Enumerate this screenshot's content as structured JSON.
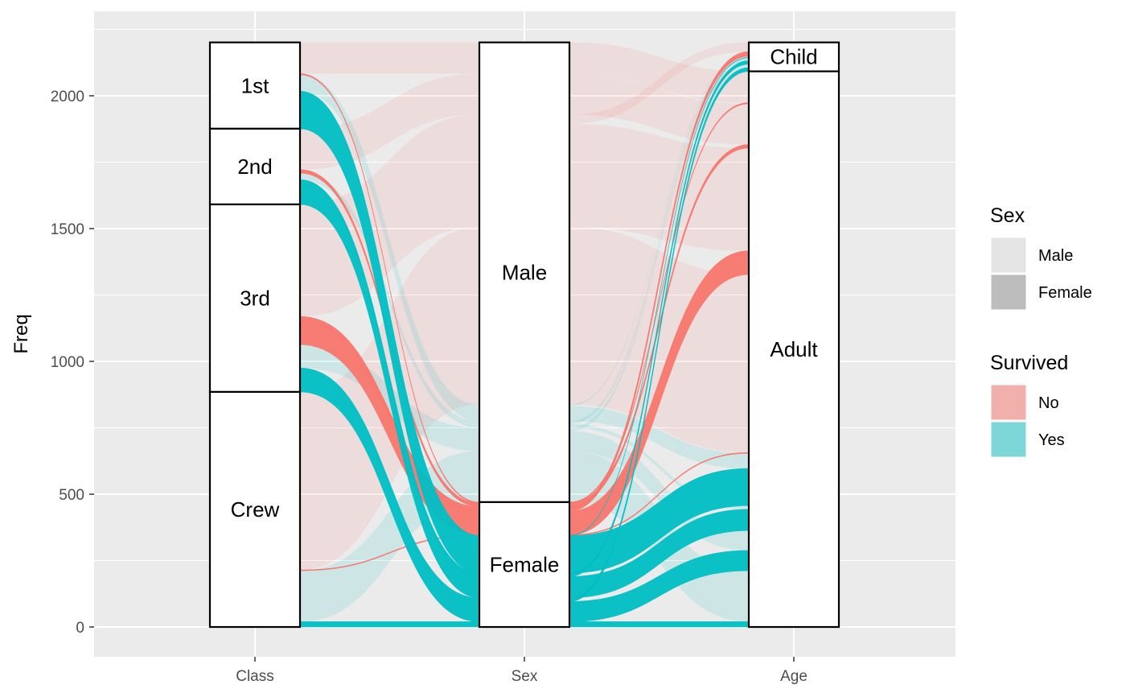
{
  "chart_data": {
    "type": "alluvial",
    "axes": [
      "Class",
      "Sex",
      "Age"
    ],
    "ylabel": "Freq",
    "ylim": [
      0,
      2201
    ],
    "y_ticks": [
      0,
      500,
      1000,
      1500,
      2000
    ],
    "strata": {
      "Class": [
        {
          "label": "1st",
          "count": 325
        },
        {
          "label": "2nd",
          "count": 285
        },
        {
          "label": "3rd",
          "count": 706
        },
        {
          "label": "Crew",
          "count": 885
        }
      ],
      "Sex": [
        {
          "label": "Male",
          "count": 1731
        },
        {
          "label": "Female",
          "count": 470
        }
      ],
      "Age": [
        {
          "label": "Child",
          "count": 109
        },
        {
          "label": "Adult",
          "count": 2092
        }
      ]
    },
    "flows": [
      {
        "class": "1st",
        "sex": "Male",
        "age": "Child",
        "survived": "No",
        "freq": 0
      },
      {
        "class": "2nd",
        "sex": "Male",
        "age": "Child",
        "survived": "No",
        "freq": 0
      },
      {
        "class": "3rd",
        "sex": "Male",
        "age": "Child",
        "survived": "No",
        "freq": 35
      },
      {
        "class": "Crew",
        "sex": "Male",
        "age": "Child",
        "survived": "No",
        "freq": 0
      },
      {
        "class": "1st",
        "sex": "Female",
        "age": "Child",
        "survived": "No",
        "freq": 0
      },
      {
        "class": "2nd",
        "sex": "Female",
        "age": "Child",
        "survived": "No",
        "freq": 0
      },
      {
        "class": "3rd",
        "sex": "Female",
        "age": "Child",
        "survived": "No",
        "freq": 17
      },
      {
        "class": "Crew",
        "sex": "Female",
        "age": "Child",
        "survived": "No",
        "freq": 0
      },
      {
        "class": "1st",
        "sex": "Male",
        "age": "Adult",
        "survived": "No",
        "freq": 118
      },
      {
        "class": "2nd",
        "sex": "Male",
        "age": "Adult",
        "survived": "No",
        "freq": 154
      },
      {
        "class": "3rd",
        "sex": "Male",
        "age": "Adult",
        "survived": "No",
        "freq": 387
      },
      {
        "class": "Crew",
        "sex": "Male",
        "age": "Adult",
        "survived": "No",
        "freq": 670
      },
      {
        "class": "1st",
        "sex": "Female",
        "age": "Adult",
        "survived": "No",
        "freq": 4
      },
      {
        "class": "2nd",
        "sex": "Female",
        "age": "Adult",
        "survived": "No",
        "freq": 13
      },
      {
        "class": "3rd",
        "sex": "Female",
        "age": "Adult",
        "survived": "No",
        "freq": 89
      },
      {
        "class": "Crew",
        "sex": "Female",
        "age": "Adult",
        "survived": "No",
        "freq": 3
      },
      {
        "class": "1st",
        "sex": "Male",
        "age": "Child",
        "survived": "Yes",
        "freq": 5
      },
      {
        "class": "2nd",
        "sex": "Male",
        "age": "Child",
        "survived": "Yes",
        "freq": 11
      },
      {
        "class": "3rd",
        "sex": "Male",
        "age": "Child",
        "survived": "Yes",
        "freq": 13
      },
      {
        "class": "Crew",
        "sex": "Male",
        "age": "Child",
        "survived": "Yes",
        "freq": 0
      },
      {
        "class": "1st",
        "sex": "Female",
        "age": "Child",
        "survived": "Yes",
        "freq": 1
      },
      {
        "class": "2nd",
        "sex": "Female",
        "age": "Child",
        "survived": "Yes",
        "freq": 13
      },
      {
        "class": "3rd",
        "sex": "Female",
        "age": "Child",
        "survived": "Yes",
        "freq": 14
      },
      {
        "class": "Crew",
        "sex": "Female",
        "age": "Child",
        "survived": "Yes",
        "freq": 0
      },
      {
        "class": "1st",
        "sex": "Male",
        "age": "Adult",
        "survived": "Yes",
        "freq": 57
      },
      {
        "class": "2nd",
        "sex": "Male",
        "age": "Adult",
        "survived": "Yes",
        "freq": 14
      },
      {
        "class": "3rd",
        "sex": "Male",
        "age": "Adult",
        "survived": "Yes",
        "freq": 75
      },
      {
        "class": "Crew",
        "sex": "Male",
        "age": "Adult",
        "survived": "Yes",
        "freq": 192
      },
      {
        "class": "1st",
        "sex": "Female",
        "age": "Adult",
        "survived": "Yes",
        "freq": 140
      },
      {
        "class": "2nd",
        "sex": "Female",
        "age": "Adult",
        "survived": "Yes",
        "freq": 80
      },
      {
        "class": "3rd",
        "sex": "Female",
        "age": "Adult",
        "survived": "Yes",
        "freq": 76
      },
      {
        "class": "Crew",
        "sex": "Female",
        "age": "Adult",
        "survived": "Yes",
        "freq": 20
      }
    ],
    "highlight": [
      {
        "class": "3rd",
        "sex": "Female",
        "age": "Adult",
        "survived": "No"
      },
      {
        "class": "1st",
        "sex": "Female",
        "age": "Adult",
        "survived": "Yes"
      },
      {
        "class": "2nd",
        "sex": "Female",
        "age": "Adult",
        "survived": "Yes"
      },
      {
        "class": "3rd",
        "sex": "Female",
        "age": "Adult",
        "survived": "Yes"
      },
      {
        "class": "Crew",
        "sex": "Female",
        "age": "Adult",
        "survived": "Yes"
      },
      {
        "class": "1st",
        "sex": "Female",
        "age": "Child",
        "survived": "Yes"
      },
      {
        "class": "2nd",
        "sex": "Female",
        "age": "Child",
        "survived": "Yes"
      },
      {
        "class": "3rd",
        "sex": "Female",
        "age": "Child",
        "survived": "Yes"
      },
      {
        "class": "3rd",
        "sex": "Female",
        "age": "Child",
        "survived": "No"
      },
      {
        "class": "1st",
        "sex": "Female",
        "age": "Adult",
        "survived": "No"
      },
      {
        "class": "2nd",
        "sex": "Female",
        "age": "Adult",
        "survived": "No"
      },
      {
        "class": "Crew",
        "sex": "Female",
        "age": "Adult",
        "survived": "No"
      }
    ],
    "colors": {
      "No": "#F8766D",
      "Yes": "#00BFC4",
      "panel_bg": "#EBEBEB",
      "grid": "#FFFFFF",
      "stratum_fill": "#FFFFFF",
      "stratum_border": "#000000"
    },
    "legends": [
      {
        "title": "Sex",
        "items": [
          {
            "label": "Male",
            "color": "#E5E5E5"
          },
          {
            "label": "Female",
            "color": "#BDBDBD"
          }
        ]
      },
      {
        "title": "Survived",
        "items": [
          {
            "label": "No",
            "color": "#F2B0AC"
          },
          {
            "label": "Yes",
            "color": "#7DD7D9"
          }
        ]
      }
    ],
    "legend_position": "right",
    "grid": true
  }
}
